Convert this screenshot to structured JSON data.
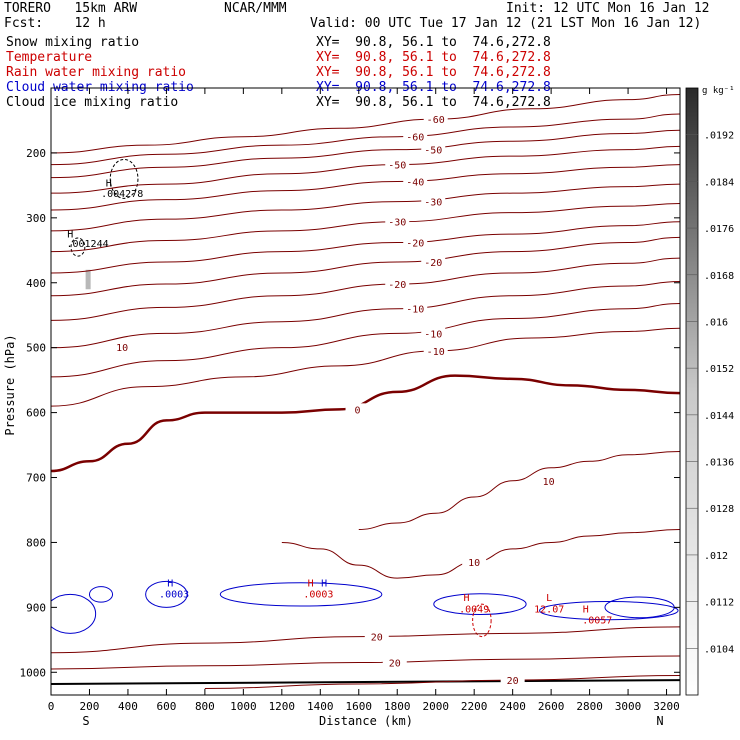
{
  "header": {
    "model": "TORERO   15km ARW",
    "center": "NCAR/MMM",
    "init": "Init: 12 UTC Mon 16 Jan 12",
    "fcst": "Fcst:    12 h",
    "valid": "Valid: 00 UTC Tue 17 Jan 12 (21 LST Mon 16 Jan 12)"
  },
  "legend": [
    {
      "name": "Snow mixing ratio",
      "xy": "XY=  90.8, 56.1 to  74.6,272.8",
      "color": "#000000"
    },
    {
      "name": "Temperature",
      "xy": "XY=  90.8, 56.1 to  74.6,272.8",
      "color": "#cc0000"
    },
    {
      "name": "Rain water mixing ratio",
      "xy": "XY=  90.8, 56.1 to  74.6,272.8",
      "color": "#cc0000"
    },
    {
      "name": "Cloud water mixing ratio",
      "xy": "XY=  90.8, 56.1 to  74.6,272.8",
      "color": "#0000cc"
    },
    {
      "name": "Cloud ice mixing ratio",
      "xy": "XY=  90.8, 56.1 to  74.6,272.8",
      "color": "#000000"
    }
  ],
  "chart_data": {
    "type": "line",
    "xlabel": "Distance (km)",
    "ylabel": "Pressure (hPa)",
    "xlim": [
      0,
      3270
    ],
    "ylim": [
      1035,
      100
    ],
    "x_ticks": [
      0,
      200,
      400,
      600,
      800,
      1000,
      1200,
      1400,
      1600,
      1800,
      2000,
      2200,
      2400,
      2600,
      2800,
      3000,
      3200
    ],
    "y_ticks": [
      200,
      300,
      400,
      500,
      600,
      700,
      800,
      900,
      1000
    ],
    "end_labels": {
      "left": "S",
      "right": "N"
    },
    "colorbar": {
      "unit": "g kg⁻¹",
      "ticks": [
        ".0192",
        ".0184",
        ".0176",
        ".0168",
        ".016",
        ".0152",
        ".0144",
        ".0136",
        ".0128",
        ".012",
        ".0112",
        ".0104"
      ]
    },
    "series": [
      {
        "name": "Temperature",
        "unit": "C",
        "isotherms": [
          {
            "value": -60,
            "points": [
              [
                0,
                200
              ],
              [
                500,
                188
              ],
              [
                1000,
                175
              ],
              [
                1500,
                162
              ],
              [
                2000,
                148
              ],
              [
                2500,
                132
              ],
              [
                3000,
                118
              ],
              [
                3270,
                110
              ]
            ]
          },
          {
            "value": -60,
            "points": [
              [
                0,
                218
              ],
              [
                600,
                202
              ],
              [
                1200,
                188
              ],
              [
                1800,
                175
              ],
              [
                2400,
                160
              ],
              [
                3000,
                148
              ],
              [
                3270,
                140
              ]
            ]
          },
          {
            "value": -50,
            "points": [
              [
                0,
                238
              ],
              [
                600,
                222
              ],
              [
                1200,
                208
              ],
              [
                1800,
                195
              ],
              [
                2400,
                182
              ],
              [
                3000,
                170
              ],
              [
                3270,
                165
              ]
            ]
          },
          {
            "value": -50,
            "points": [
              [
                0,
                262
              ],
              [
                600,
                248
              ],
              [
                1200,
                232
              ],
              [
                1800,
                218
              ],
              [
                2400,
                205
              ],
              [
                3000,
                195
              ],
              [
                3270,
                190
              ]
            ]
          },
          {
            "value": -40,
            "points": [
              [
                0,
                288
              ],
              [
                600,
                272
              ],
              [
                1200,
                258
              ],
              [
                1800,
                244
              ],
              [
                2400,
                232
              ],
              [
                3000,
                222
              ],
              [
                3270,
                218
              ]
            ]
          },
          {
            "value": -30,
            "points": [
              [
                0,
                320
              ],
              [
                600,
                302
              ],
              [
                1200,
                288
              ],
              [
                1800,
                275
              ],
              [
                2400,
                262
              ],
              [
                3000,
                252
              ],
              [
                3270,
                248
              ]
            ]
          },
          {
            "value": -30,
            "points": [
              [
                0,
                352
              ],
              [
                600,
                335
              ],
              [
                1200,
                320
              ],
              [
                1800,
                306
              ],
              [
                2400,
                292
              ],
              [
                3000,
                282
              ],
              [
                3270,
                278
              ]
            ]
          },
          {
            "value": -20,
            "points": [
              [
                0,
                385
              ],
              [
                600,
                368
              ],
              [
                1200,
                352
              ],
              [
                1800,
                338
              ],
              [
                2400,
                325
              ],
              [
                3000,
                312
              ],
              [
                3270,
                306
              ]
            ]
          },
          {
            "value": -20,
            "points": [
              [
                0,
                420
              ],
              [
                600,
                402
              ],
              [
                1200,
                385
              ],
              [
                1800,
                368
              ],
              [
                2400,
                352
              ],
              [
                3000,
                338
              ],
              [
                3270,
                330
              ]
            ]
          },
          {
            "value": -20,
            "points": [
              [
                0,
                458
              ],
              [
                600,
                438
              ],
              [
                1200,
                420
              ],
              [
                1800,
                402
              ],
              [
                2400,
                385
              ],
              [
                3000,
                370
              ],
              [
                3270,
                362
              ]
            ]
          },
          {
            "value": -10,
            "points": [
              [
                0,
                500
              ],
              [
                600,
                478
              ],
              [
                1200,
                460
              ],
              [
                1800,
                440
              ],
              [
                2400,
                420
              ],
              [
                3000,
                405
              ],
              [
                3270,
                398
              ]
            ]
          },
          {
            "value": -10,
            "points": [
              [
                0,
                545
              ],
              [
                600,
                520
              ],
              [
                1200,
                500
              ],
              [
                1800,
                478
              ],
              [
                2400,
                455
              ],
              [
                3000,
                440
              ],
              [
                3270,
                432
              ]
            ]
          },
          {
            "value": -10,
            "points": [
              [
                0,
                590
              ],
              [
                500,
                560
              ],
              [
                1000,
                545
              ],
              [
                1500,
                528
              ],
              [
                2000,
                505
              ],
              [
                2500,
                485
              ],
              [
                3000,
                475
              ],
              [
                3270,
                470
              ]
            ]
          },
          {
            "value": 0,
            "points": [
              [
                0,
                690
              ],
              [
                200,
                675
              ],
              [
                400,
                648
              ],
              [
                600,
                612
              ],
              [
                800,
                600
              ],
              [
                1200,
                600
              ],
              [
                1500,
                595
              ],
              [
                1800,
                568
              ],
              [
                2100,
                543
              ],
              [
                2400,
                548
              ],
              [
                2700,
                558
              ],
              [
                3000,
                565
              ],
              [
                3270,
                570
              ]
            ]
          },
          {
            "value": 10,
            "points": [
              [
                1600,
                780
              ],
              [
                1800,
                770
              ],
              [
                2000,
                755
              ],
              [
                2200,
                730
              ],
              [
                2400,
                705
              ],
              [
                2600,
                685
              ],
              [
                2800,
                675
              ],
              [
                3000,
                665
              ],
              [
                3270,
                660
              ]
            ]
          },
          {
            "value": 10,
            "points": [
              [
                1200,
                800
              ],
              [
                1400,
                810
              ],
              [
                1600,
                835
              ],
              [
                1800,
                855
              ],
              [
                2000,
                850
              ],
              [
                2200,
                830
              ],
              [
                2400,
                810
              ],
              [
                2600,
                800
              ],
              [
                2800,
                790
              ],
              [
                3000,
                785
              ],
              [
                3270,
                780
              ]
            ]
          },
          {
            "value": 20,
            "points": [
              [
                0,
                970
              ],
              [
                800,
                955
              ],
              [
                1600,
                945
              ],
              [
                2400,
                940
              ],
              [
                3270,
                930
              ]
            ]
          },
          {
            "value": 20,
            "points": [
              [
                0,
                995
              ],
              [
                800,
                990
              ],
              [
                1600,
                985
              ],
              [
                2400,
                980
              ],
              [
                3270,
                975
              ]
            ]
          },
          {
            "value": 20,
            "points": [
              [
                800,
                1025
              ],
              [
                1600,
                1018
              ],
              [
                2400,
                1012
              ],
              [
                3270,
                1005
              ]
            ]
          }
        ]
      }
    ],
    "annotations": [
      {
        "text": "H",
        "x": 300,
        "y": 252,
        "color": "#000000"
      },
      {
        "text": ".004278",
        "x": 370,
        "y": 268,
        "color": "#000000"
      },
      {
        "text": "H",
        "x": 100,
        "y": 330,
        "color": "#000000"
      },
      {
        "text": ".001244",
        "x": 190,
        "y": 345,
        "color": "#000000"
      },
      {
        "text": "H",
        "x": 620,
        "y": 868,
        "color": "#0000cc"
      },
      {
        "text": ".0003",
        "x": 640,
        "y": 885,
        "color": "#0000cc"
      },
      {
        "text": "H",
        "x": 1350,
        "y": 868,
        "color": "#cc0000"
      },
      {
        "text": "H",
        "x": 1420,
        "y": 868,
        "color": "#0000cc"
      },
      {
        "text": ".0003",
        "x": 1390,
        "y": 885,
        "color": "#cc0000"
      },
      {
        "text": "H",
        "x": 2160,
        "y": 890,
        "color": "#cc0000"
      },
      {
        "text": ".0049",
        "x": 2200,
        "y": 908,
        "color": "#cc0000"
      },
      {
        "text": "L",
        "x": 2590,
        "y": 890,
        "color": "#cc0000"
      },
      {
        "text": "12.07",
        "x": 2590,
        "y": 908,
        "color": "#cc0000"
      },
      {
        "text": "H",
        "x": 2780,
        "y": 908,
        "color": "#cc0000"
      },
      {
        "text": ".0057",
        "x": 2840,
        "y": 925,
        "color": "#cc0000"
      },
      {
        "text": "10",
        "x": 370,
        "y": 505,
        "color": "#7a0000"
      }
    ]
  }
}
